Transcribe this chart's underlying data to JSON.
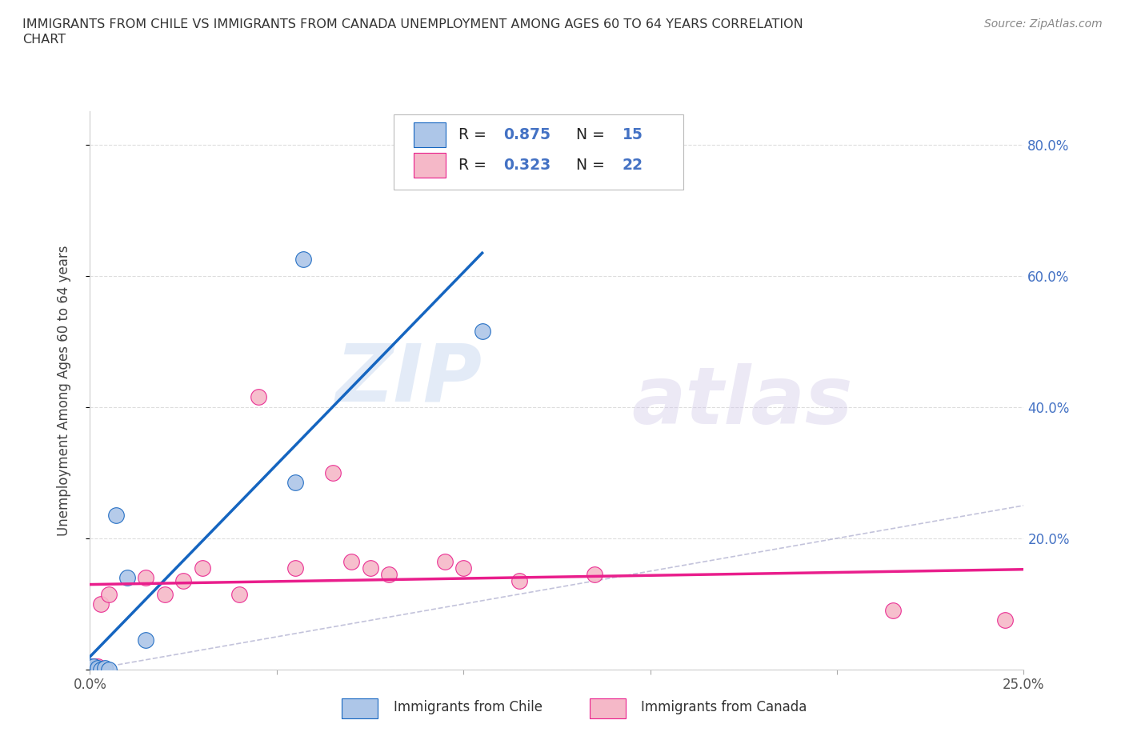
{
  "title_line1": "IMMIGRANTS FROM CHILE VS IMMIGRANTS FROM CANADA UNEMPLOYMENT AMONG AGES 60 TO 64 YEARS CORRELATION",
  "title_line2": "CHART",
  "source_text": "Source: ZipAtlas.com",
  "ylabel": "Unemployment Among Ages 60 to 64 years",
  "xlim": [
    0.0,
    0.25
  ],
  "ylim": [
    0.0,
    0.85
  ],
  "x_ticks": [
    0.0,
    0.05,
    0.1,
    0.15,
    0.2,
    0.25
  ],
  "y_ticks": [
    0.0,
    0.2,
    0.4,
    0.6,
    0.8
  ],
  "chile_color": "#adc6e8",
  "canada_color": "#f5b8c8",
  "chile_line_color": "#1565c0",
  "canada_line_color": "#e91e8c",
  "diagonal_color": "#aaaacc",
  "watermark_zip": "ZIP",
  "watermark_atlas": "atlas",
  "legend_R_chile": "0.875",
  "legend_N_chile": "15",
  "legend_R_canada": "0.323",
  "legend_N_canada": "22",
  "chile_scatter_x": [
    0.0,
    0.0,
    0.001,
    0.001,
    0.002,
    0.002,
    0.003,
    0.004,
    0.005,
    0.007,
    0.01,
    0.015,
    0.055,
    0.057,
    0.105
  ],
  "chile_scatter_y": [
    0.0,
    0.005,
    0.0,
    0.005,
    0.0,
    0.002,
    0.0,
    0.002,
    0.0,
    0.235,
    0.14,
    0.045,
    0.285,
    0.625,
    0.515
  ],
  "canada_scatter_x": [
    0.0,
    0.001,
    0.002,
    0.003,
    0.005,
    0.015,
    0.02,
    0.025,
    0.03,
    0.04,
    0.045,
    0.055,
    0.065,
    0.07,
    0.075,
    0.08,
    0.095,
    0.1,
    0.115,
    0.135,
    0.215,
    0.245
  ],
  "canada_scatter_y": [
    0.0,
    0.005,
    0.005,
    0.1,
    0.115,
    0.14,
    0.115,
    0.135,
    0.155,
    0.115,
    0.415,
    0.155,
    0.3,
    0.165,
    0.155,
    0.145,
    0.165,
    0.155,
    0.135,
    0.145,
    0.09,
    0.075
  ],
  "bottom_legend_chile": "Immigrants from Chile",
  "bottom_legend_canada": "Immigrants from Canada"
}
